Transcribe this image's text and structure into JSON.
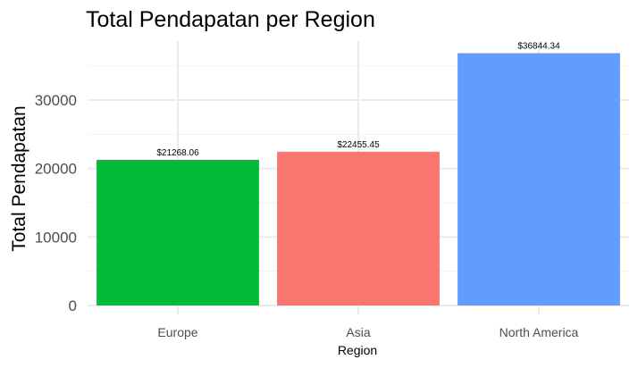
{
  "chart_data": {
    "type": "bar",
    "title": "Total Pendapatan per Region",
    "xlabel": "Region",
    "ylabel": "Total Pendapatan",
    "categories": [
      "Europe",
      "Asia",
      "North America"
    ],
    "values": [
      21268.06,
      22455.45,
      36844.34
    ],
    "data_labels": [
      "$21268.06",
      "$22455.45",
      "$36844.34"
    ],
    "colors": [
      "#00BA38",
      "#F8766D",
      "#619CFF"
    ],
    "ylim": [
      0,
      38700
    ],
    "yticks": [
      0,
      10000,
      20000,
      30000
    ],
    "ytick_labels": [
      "0",
      "10000",
      "20000",
      "30000"
    ],
    "grid": true,
    "legend": "none"
  }
}
